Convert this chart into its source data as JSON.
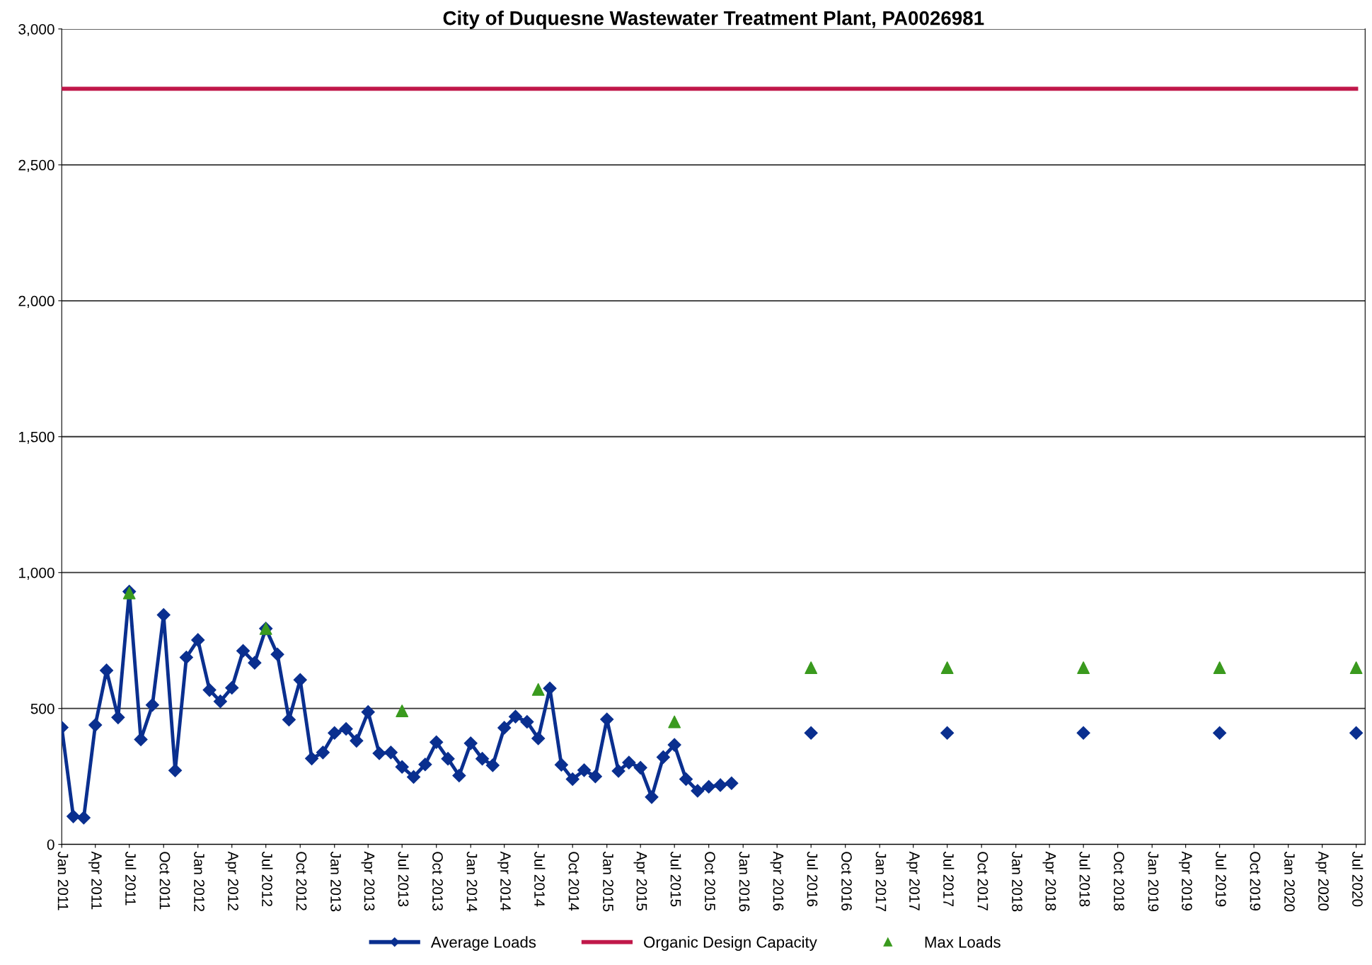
{
  "chart_data": {
    "type": "line",
    "title": "City of Duquesne Wastewater Treatment Plant, PA0026981",
    "series": [
      {
        "name": "Average Loads",
        "color": "#0a2f8f",
        "marker": "diamond",
        "x": [
          "2011-01",
          "2011-02",
          "2011-03",
          "2011-04",
          "2011-05",
          "2011-06",
          "2011-07",
          "2011-08",
          "2011-09",
          "2011-10",
          "2011-11",
          "2011-12",
          "2012-01",
          "2012-02",
          "2012-03",
          "2012-04",
          "2012-05",
          "2012-06",
          "2012-07",
          "2012-08",
          "2012-09",
          "2012-10",
          "2012-11",
          "2012-12",
          "2013-01",
          "2013-02",
          "2013-03",
          "2013-04",
          "2013-05",
          "2013-06",
          "2013-07",
          "2013-08",
          "2013-09",
          "2013-10",
          "2013-11",
          "2013-12",
          "2014-01",
          "2014-02",
          "2014-03",
          "2014-04",
          "2014-05",
          "2014-06",
          "2014-07",
          "2014-08",
          "2014-09",
          "2014-10",
          "2014-11",
          "2014-12",
          "2015-01",
          "2015-02",
          "2015-03",
          "2015-04",
          "2015-05",
          "2015-06",
          "2015-07",
          "2015-08",
          "2015-09",
          "2015-10",
          "2015-11",
          "2015-12",
          "2016-03",
          "2016-07",
          "2017-01",
          "2017-07",
          "2018-01",
          "2018-07",
          "2019-01",
          "2019-07",
          "2020-01",
          "2020-07"
        ],
        "values": [
          430,
          103,
          98,
          439,
          640,
          467,
          930,
          386,
          513,
          844,
          272,
          688,
          752,
          568,
          526,
          576,
          712,
          668,
          794,
          699,
          459,
          605,
          316,
          338,
          410,
          425,
          381,
          487,
          335,
          338,
          285,
          248,
          294,
          376,
          315,
          253,
          372,
          315,
          291,
          429,
          470,
          451,
          390,
          574,
          293,
          240,
          273,
          250,
          460,
          270,
          301,
          282,
          174,
          321,
          366,
          240,
          197,
          212,
          218,
          225,
          null,
          410,
          null,
          410,
          null,
          410,
          null,
          410,
          null,
          410
        ]
      },
      {
        "name": "Organic Design Capacity",
        "color": "#c0184a",
        "marker": "none",
        "x": [
          "2011-01",
          "2020-07"
        ],
        "values": [
          2780,
          2780
        ]
      },
      {
        "name": "Max Loads",
        "type": "scatter",
        "color": "#3a9a1e",
        "marker": "triangle",
        "x": [
          "2011-07",
          "2012-07",
          "2013-07",
          "2014-07",
          "2015-07",
          "2016-07",
          "2017-07",
          "2018-07",
          "2019-07",
          "2020-07"
        ],
        "values": [
          925,
          794,
          491,
          570,
          451,
          650,
          650,
          650,
          650,
          650
        ]
      }
    ],
    "xlim": [
      "2011-01-01",
      "2020-07-25"
    ],
    "xticks": [
      {
        "value": "2011-01",
        "label": "Jan 2011"
      },
      {
        "value": "2011-04",
        "label": "Apr 2011"
      },
      {
        "value": "2011-07",
        "label": "Jul 2011"
      },
      {
        "value": "2011-10",
        "label": "Oct 2011"
      },
      {
        "value": "2012-01",
        "label": "Jan 2012"
      },
      {
        "value": "2012-04",
        "label": "Apr 2012"
      },
      {
        "value": "2012-07",
        "label": "Jul 2012"
      },
      {
        "value": "2012-10",
        "label": "Oct 2012"
      },
      {
        "value": "2013-01",
        "label": "Jan 2013"
      },
      {
        "value": "2013-04",
        "label": "Apr 2013"
      },
      {
        "value": "2013-07",
        "label": "Jul 2013"
      },
      {
        "value": "2013-10",
        "label": "Oct 2013"
      },
      {
        "value": "2014-01",
        "label": "Jan 2014"
      },
      {
        "value": "2014-04",
        "label": "Apr 2014"
      },
      {
        "value": "2014-07",
        "label": "Jul 2014"
      },
      {
        "value": "2014-10",
        "label": "Oct 2014"
      },
      {
        "value": "2015-01",
        "label": "Jan 2015"
      },
      {
        "value": "2015-04",
        "label": "Apr 2015"
      },
      {
        "value": "2015-07",
        "label": "Jul 2015"
      },
      {
        "value": "2015-10",
        "label": "Oct 2015"
      },
      {
        "value": "2016-01",
        "label": "Jan 2016"
      },
      {
        "value": "2016-04",
        "label": "Apr 2016"
      },
      {
        "value": "2016-07",
        "label": "Jul 2016"
      },
      {
        "value": "2016-10",
        "label": "Oct 2016"
      },
      {
        "value": "2017-01",
        "label": "Jan 2017"
      },
      {
        "value": "2017-04",
        "label": "Apr 2017"
      },
      {
        "value": "2017-07",
        "label": "Jul 2017"
      },
      {
        "value": "2017-10",
        "label": "Oct 2017"
      },
      {
        "value": "2018-01",
        "label": "Jan 2018"
      },
      {
        "value": "2018-04",
        "label": "Apr 2018"
      },
      {
        "value": "2018-07",
        "label": "Jul 2018"
      },
      {
        "value": "2018-10",
        "label": "Oct 2018"
      },
      {
        "value": "2019-01",
        "label": "Jan 2019"
      },
      {
        "value": "2019-04",
        "label": "Apr 2019"
      },
      {
        "value": "2019-07",
        "label": "Jul 2019"
      },
      {
        "value": "2019-10",
        "label": "Oct 2019"
      },
      {
        "value": "2020-01",
        "label": "Jan 2020"
      },
      {
        "value": "2020-04",
        "label": "Apr 2020"
      },
      {
        "value": "2020-07",
        "label": "Jul 2020"
      }
    ],
    "ylim": [
      0,
      3000
    ],
    "yticks": [
      0,
      500,
      {
        "value": 1000,
        "label": "1,000"
      },
      {
        "value": 1500,
        "label": "1,500"
      },
      {
        "value": 2000,
        "label": "2,000"
      },
      {
        "value": 2500,
        "label": "2,500"
      },
      {
        "value": 3000,
        "label": "3,000"
      }
    ],
    "grid": "y",
    "legend": "bottom",
    "line_style": "solid"
  }
}
